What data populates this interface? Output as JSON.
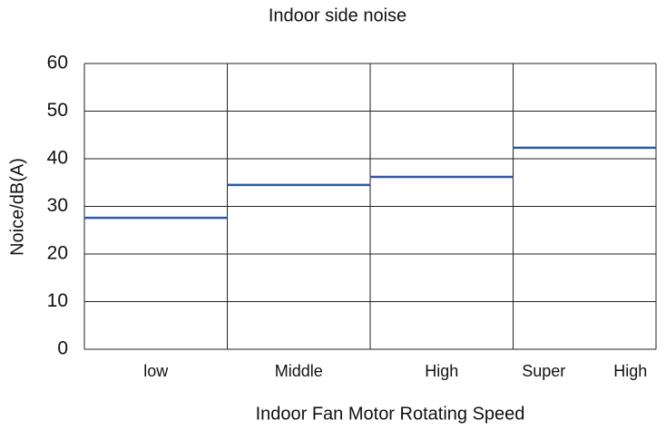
{
  "chart_data": {
    "type": "step",
    "title": "Indoor side noise",
    "x_label": "Indoor Fan Motor Rotating Speed",
    "y_label": "Noice/dB(A)",
    "categories": [
      "low",
      "Middle",
      "High",
      "Super High"
    ],
    "values": [
      27.6,
      34.5,
      36.2,
      42.3
    ],
    "color": "#2f58a6",
    "ylim": [
      0,
      60
    ],
    "yticks": [
      0,
      10,
      20,
      30,
      40,
      50,
      60
    ],
    "grid": true
  }
}
